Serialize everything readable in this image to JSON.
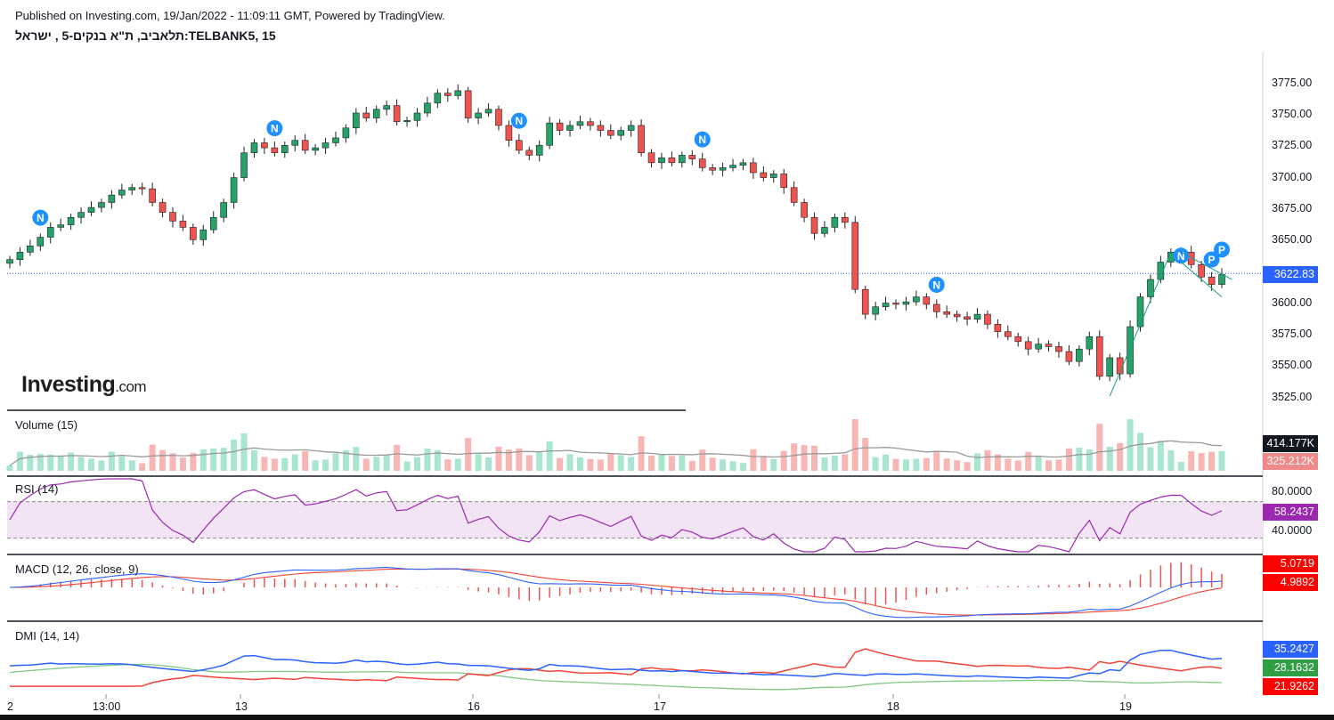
{
  "header": {
    "published": "Published on Investing.com, 19/Jan/2022 - 11:09:11 GMT, Powered by TradingView.",
    "symbol": "תלאביב, ת\"א בנקים-5 , ישראל:TELBANK5, 15"
  },
  "logo": {
    "main": "Investing",
    "suffix": ".com"
  },
  "colors": {
    "up": "#26a269",
    "down": "#ef5350",
    "rsi": "#9c27b0",
    "macd": "#2962ff",
    "signal": "#f44336",
    "plus_di": "#2962ff",
    "minus_di": "#f44336",
    "adx": "#81c784",
    "price_line": "#2962ff"
  },
  "chart_data": [
    {
      "type": "candlestick",
      "title": "TELBANK5, 15",
      "price_axis": [
        "3775.00",
        "3750.00",
        "3725.00",
        "3700.00",
        "3675.00",
        "3650.00",
        "3625.00",
        "3600.00",
        "3575.00",
        "3550.00",
        "3525.00"
      ],
      "ylim": [
        3517,
        3800
      ],
      "last_price": "3622.83",
      "x_labels": [
        "2",
        "13:00",
        "13",
        "16",
        "17",
        "18",
        "19"
      ],
      "closes": [
        3634,
        3640,
        3645,
        3652,
        3660,
        3662,
        3668,
        3672,
        3676,
        3680,
        3686,
        3690,
        3692,
        3691,
        3680,
        3672,
        3665,
        3660,
        3650,
        3658,
        3668,
        3680,
        3700,
        3720,
        3728,
        3724,
        3720,
        3726,
        3730,
        3722,
        3724,
        3728,
        3732,
        3740,
        3752,
        3748,
        3755,
        3758,
        3745,
        3746,
        3752,
        3760,
        3768,
        3766,
        3770,
        3748,
        3752,
        3755,
        3742,
        3730,
        3722,
        3718,
        3726,
        3744,
        3738,
        3742,
        3745,
        3742,
        3738,
        3734,
        3738,
        3742,
        3720,
        3712,
        3716,
        3712,
        3718,
        3715,
        3708,
        3706,
        3708,
        3710,
        3712,
        3704,
        3700,
        3703,
        3692,
        3680,
        3668,
        3655,
        3660,
        3668,
        3664,
        3610,
        3590,
        3596,
        3599,
        3598,
        3600,
        3604,
        3598,
        3592,
        3590,
        3588,
        3586,
        3590,
        3582,
        3576,
        3572,
        3568,
        3562,
        3566,
        3564,
        3560,
        3552,
        3562,
        3572,
        3540,
        3555,
        3542,
        3580,
        3604,
        3618,
        3632,
        3640,
        3640,
        3630,
        3620,
        3614,
        3622
      ]
    },
    {
      "type": "bar",
      "title": "Volume (15)",
      "labels": [
        "414.177K",
        "325.212K"
      ]
    },
    {
      "type": "line",
      "title": "RSI (14)",
      "labels": [
        "80.0000",
        "40.0000"
      ],
      "value": "58.2437",
      "bands": [
        70,
        30
      ]
    },
    {
      "type": "line",
      "title": "MACD (12, 26, close, 9)",
      "values": [
        "5.0719",
        "4.9892"
      ]
    },
    {
      "type": "line",
      "title": "DMI (14, 14)",
      "values": [
        "35.2427",
        "28.1632",
        "21.9262"
      ]
    }
  ],
  "markers": [
    "N",
    "N",
    "N",
    "N",
    "N",
    "N",
    "P",
    "P"
  ]
}
